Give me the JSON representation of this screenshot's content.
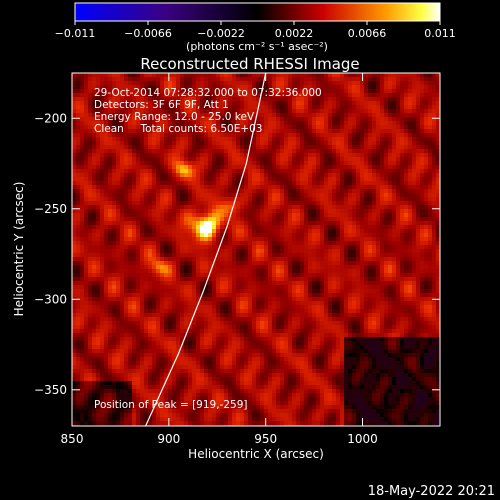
{
  "chart_data": {
    "type": "heatmap",
    "title": "Reconstructed RHESSI Image",
    "xlabel": "Heliocentric X (arcsec)",
    "ylabel": "Heliocentric Y (arcsec)",
    "xlim": [
      850,
      1040
    ],
    "ylim": [
      -370,
      -175
    ],
    "x_ticks": [
      850,
      900,
      950,
      1000
    ],
    "y_ticks": [
      -200,
      -250,
      -300,
      -350
    ],
    "colorbar": {
      "min": -0.011,
      "max": 0.011,
      "tick_values": [
        -0.011,
        -0.0066,
        -0.0022,
        0.0022,
        0.0066,
        0.011
      ],
      "tick_labels": [
        "−0.011",
        "−0.0066",
        "−0.0022",
        "0.0022",
        "0.0066",
        "0.011"
      ],
      "label": "(photons cm⁻² s⁻¹ asec⁻²)",
      "colors": [
        "#0000ff",
        "#000000",
        "#ff0000",
        "#ffff00",
        "#ffffff"
      ]
    },
    "annotations": [
      "29-Oct-2014 07:28:32.000 to 07:32:36.000",
      "Detectors: 3F 6F 9F, Att 1",
      "Energy Range: 12.0 - 25.0 keV",
      "Clean     Total counts: 6.50E+03"
    ],
    "peak": {
      "label": "Position of Peak = [919,-259]",
      "x": 919,
      "y": -259
    },
    "limb_curve": [
      [
        888,
        -370
      ],
      [
        905,
        -330
      ],
      [
        918,
        -295
      ],
      [
        930,
        -260
      ],
      [
        940,
        -225
      ],
      [
        947,
        -190
      ],
      [
        950,
        -175
      ]
    ],
    "secondary_sources": [
      {
        "x": 908,
        "y": -228,
        "strength": 0.45
      },
      {
        "x": 895,
        "y": -282,
        "strength": 0.35
      },
      {
        "x": 932,
        "y": -248,
        "strength": 0.3
      }
    ]
  },
  "footer": {
    "timestamp": "18-May-2022 20:21"
  }
}
